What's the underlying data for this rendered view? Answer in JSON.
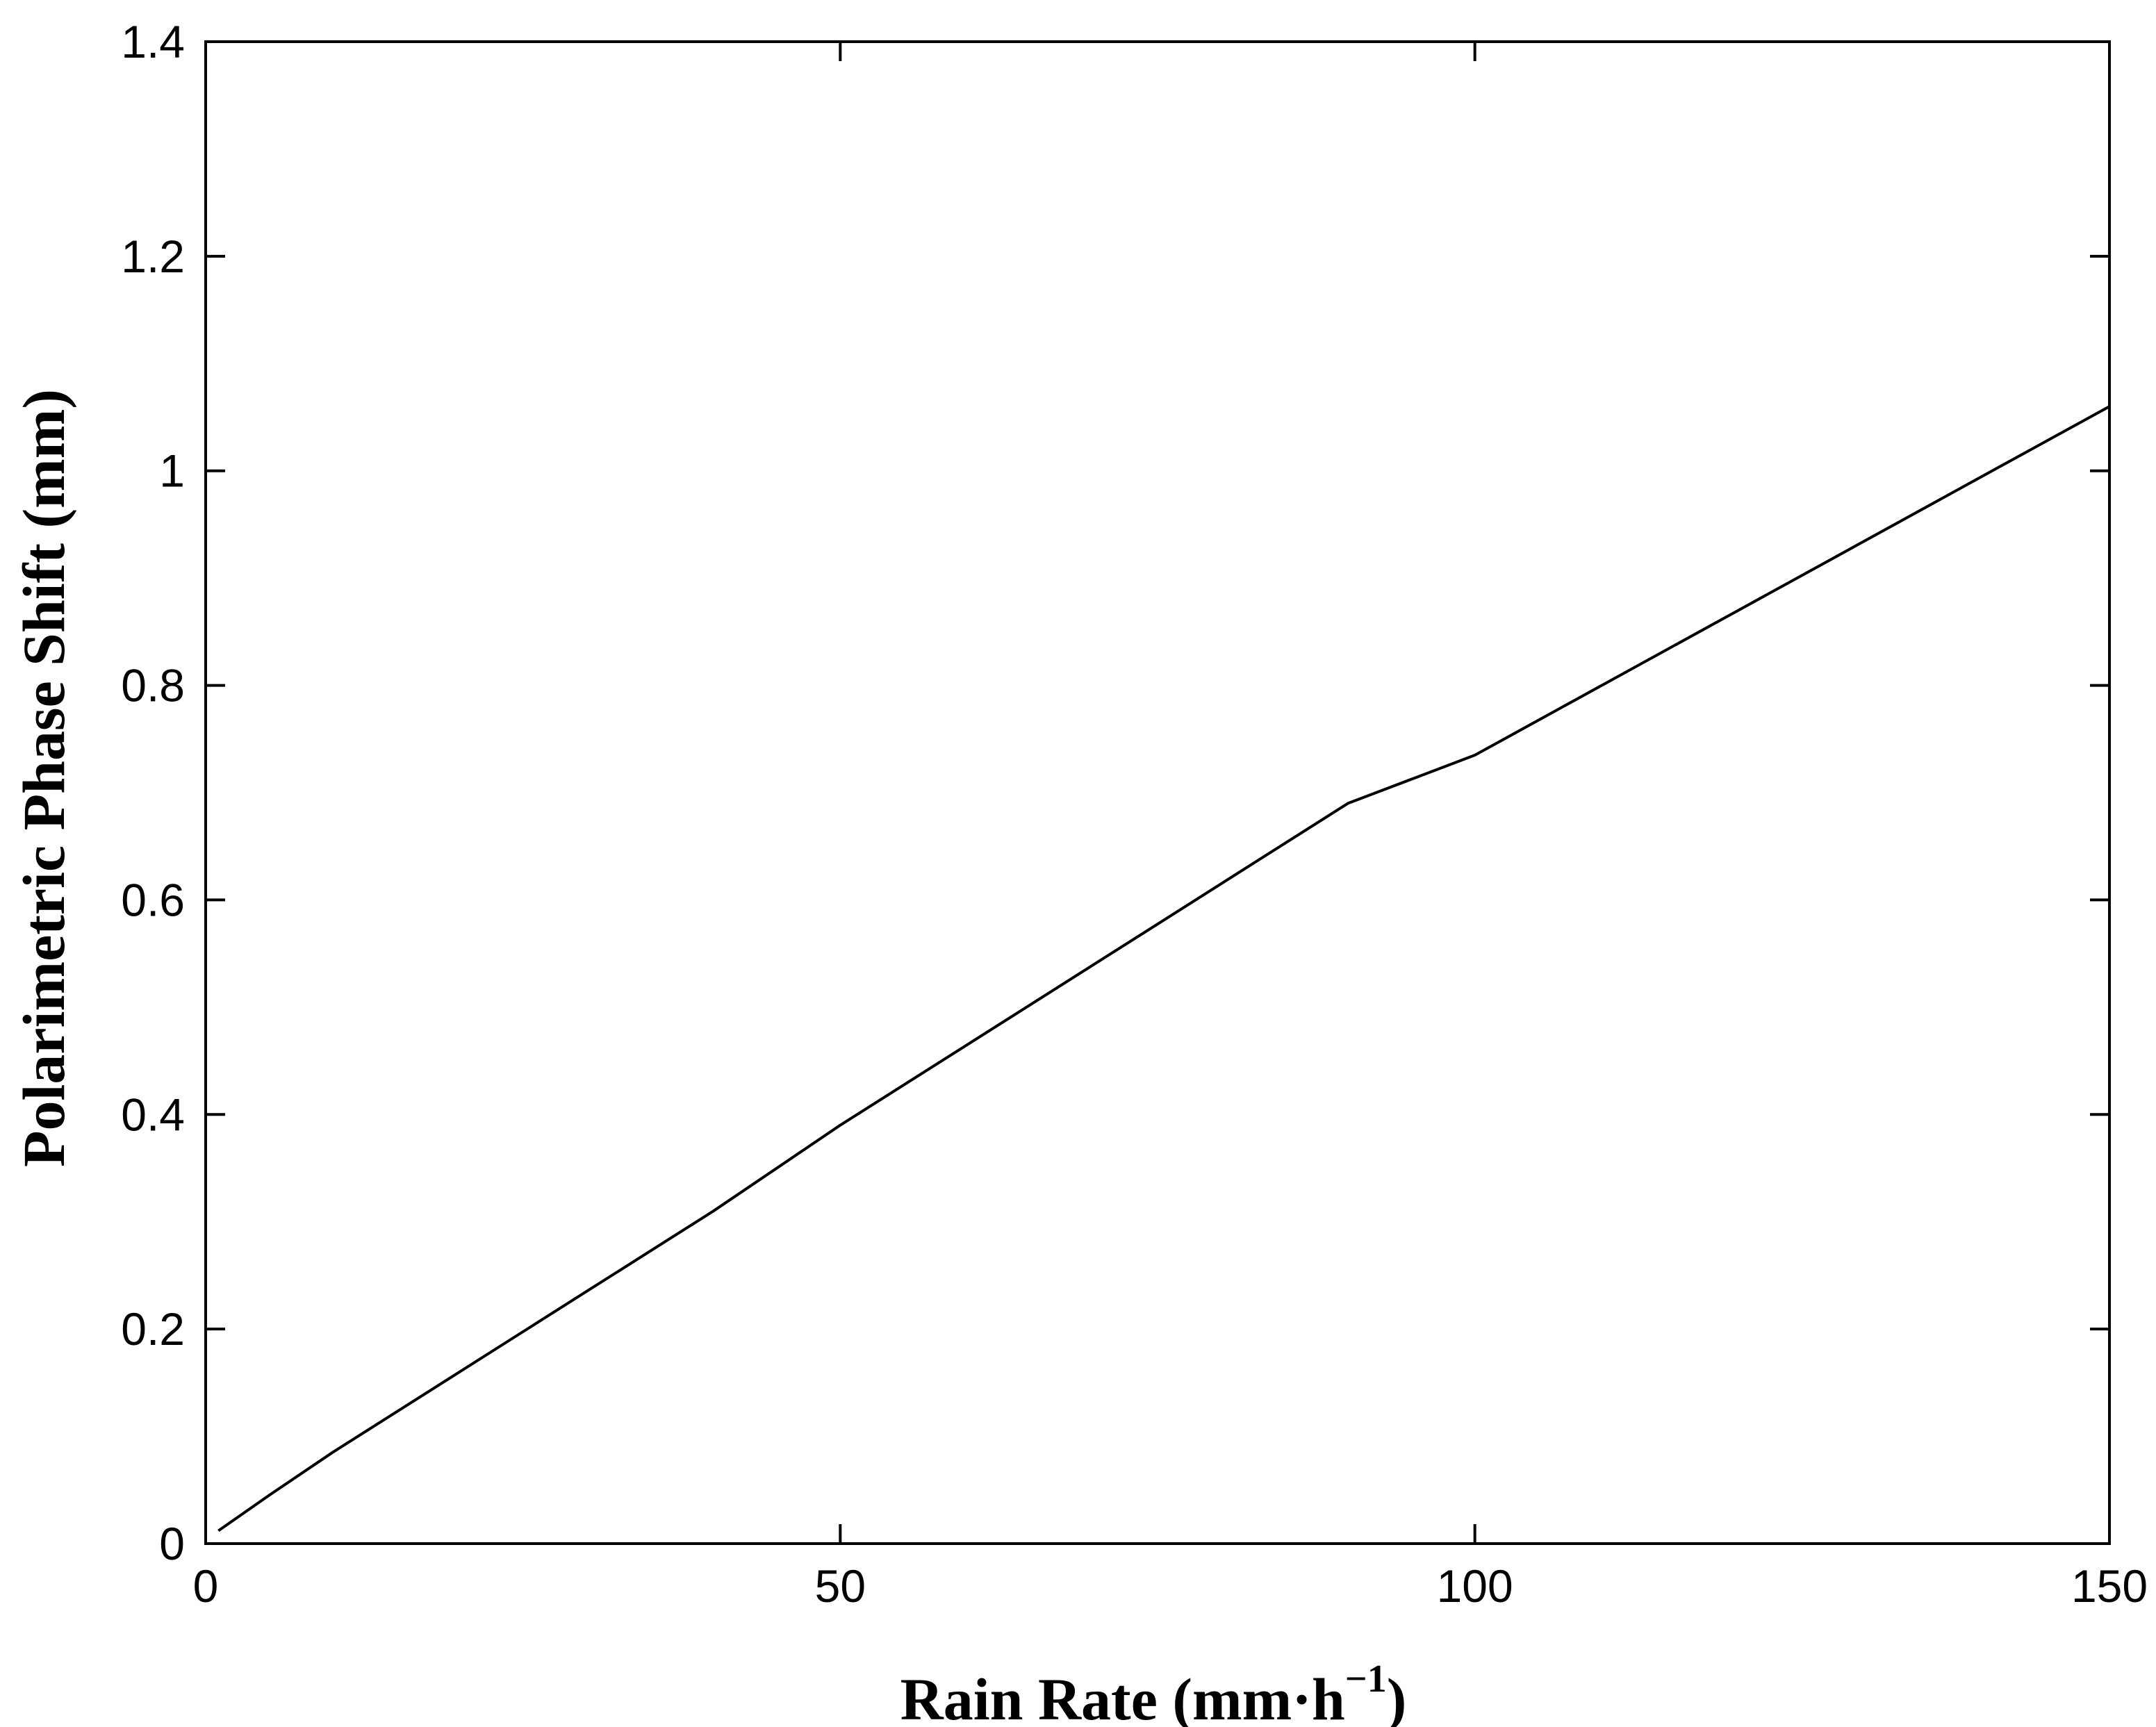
{
  "chart_data": {
    "type": "line",
    "title": "",
    "xlabel": {
      "text": "Rain Rate (mm·h",
      "superscript": "−1",
      "suffix": ")"
    },
    "ylabel": "Polarimetric Phase Shift (mm)",
    "xlim": [
      0,
      150
    ],
    "ylim": [
      0,
      1.4
    ],
    "xticks": [
      0,
      50,
      100,
      150
    ],
    "xtick_labels": [
      "0",
      "50",
      "100",
      "150"
    ],
    "yticks": [
      0,
      0.2,
      0.4,
      0.6,
      0.8,
      1.0,
      1.2,
      1.4
    ],
    "ytick_labels": [
      "0",
      "0.2",
      "0.4",
      "0.6",
      "0.8",
      "1",
      "1.2",
      "1.4"
    ],
    "grid": false,
    "line_color": "#000000",
    "series": [
      {
        "x": [
          1,
          5,
          10,
          20,
          30,
          40,
          50,
          60,
          70,
          80,
          90,
          100,
          110,
          120,
          130,
          140,
          150
        ],
        "y": [
          0.012,
          0.045,
          0.085,
          0.16,
          0.235,
          0.31,
          0.39,
          0.465,
          0.54,
          0.615,
          0.69,
          0.735,
          0.8,
          0.865,
          0.93,
          0.995,
          1.06
        ]
      }
    ]
  }
}
